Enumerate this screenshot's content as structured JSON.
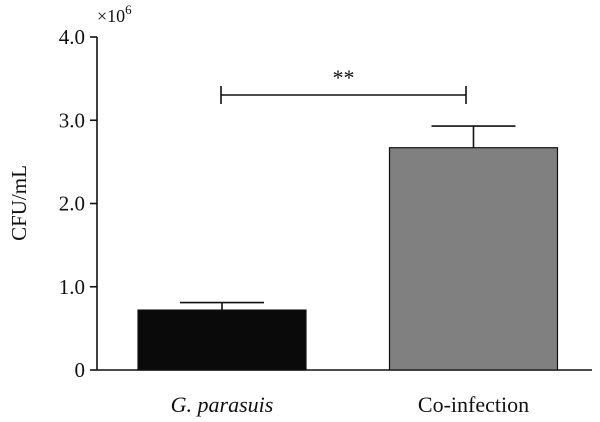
{
  "chart_data": {
    "type": "bar",
    "categories": [
      "G. parasuis",
      "Co-infection"
    ],
    "values": [
      720000,
      2670000
    ],
    "errors": [
      90000,
      260000
    ],
    "ylabel": "CFU/mL",
    "y_multiplier_base": "×10",
    "y_multiplier_exp": "6",
    "ylim": [
      0,
      4000000
    ],
    "yticks": [
      0,
      1000000,
      2000000,
      3000000,
      4000000
    ],
    "ytick_labels": [
      "0",
      "1.0",
      "2.0",
      "3.0",
      "4.0"
    ],
    "bar_colors": [
      "#0a0a0a",
      "#808080"
    ],
    "significance": {
      "label": "**",
      "between": [
        0,
        1
      ]
    },
    "grid": false,
    "legend": "none"
  }
}
